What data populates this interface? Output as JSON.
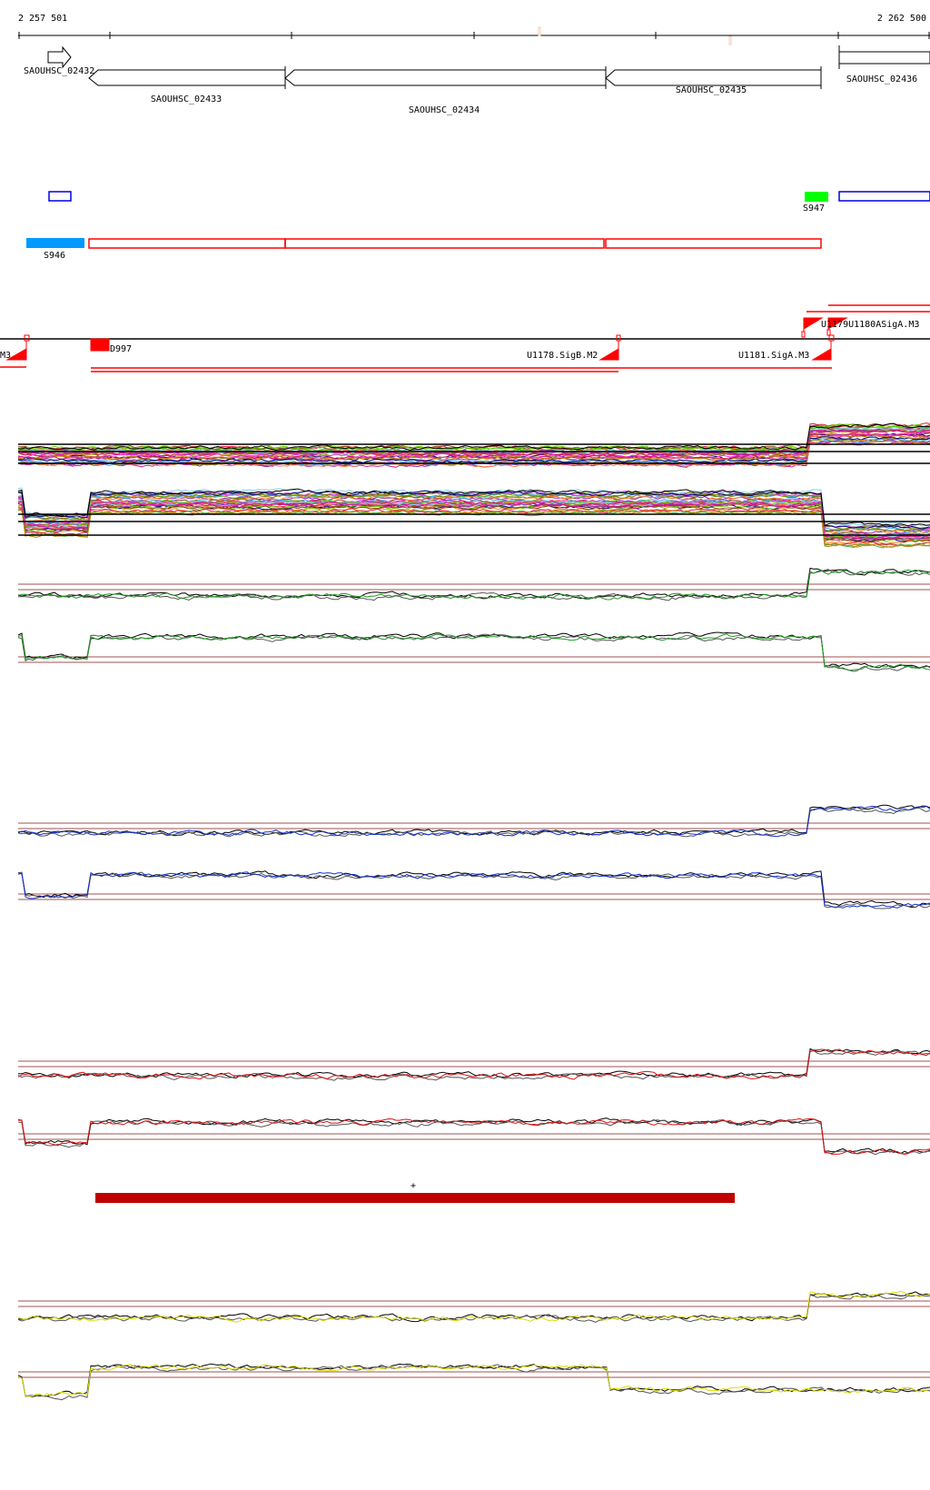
{
  "axis": {
    "start_label": "2 257 501",
    "end_label": "2 262 500"
  },
  "genes": [
    {
      "id": "SAOUHSC_02432",
      "strand": "+"
    },
    {
      "id": "SAOUHSC_02433",
      "strand": "-"
    },
    {
      "id": "SAOUHSC_02434",
      "strand": "-"
    },
    {
      "id": "SAOUHSC_02435",
      "strand": "-"
    },
    {
      "id": "SAOUHSC_02436",
      "strand": "+"
    }
  ],
  "segments": {
    "s946": "S946",
    "s947": "S947"
  },
  "colors": {
    "segment_blue": "#0000dd",
    "s946": "#0099ff",
    "s947": "#00ff00",
    "transcript_red": "#ff0000",
    "bar_dark_red": "#c00000",
    "green_track": "#229922",
    "blue_track": "#1133cc",
    "red_track": "#dd1111",
    "yellow_track": "#dddd00"
  },
  "tss": {
    "left_label": "M3",
    "d997": "D997",
    "u1178": "U1178.SigB.M2",
    "u1181": "U1181.SigA.M3",
    "overlap": "U1179U1180ASigA.M3"
  },
  "red_bar": {
    "label": "+"
  }
}
